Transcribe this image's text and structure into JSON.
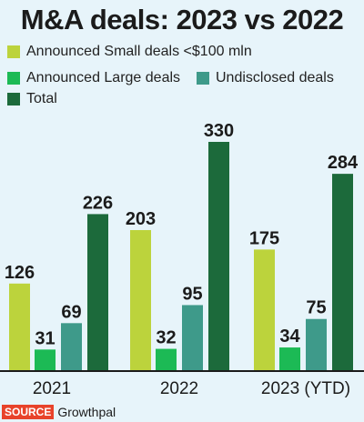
{
  "chart_data": {
    "type": "bar",
    "title": "M&A deals: 2023 vs 2022",
    "categories": [
      "2021",
      "2022",
      "2023 (YTD)"
    ],
    "series": [
      {
        "name": "Announced Small deals <$100 mln",
        "color": "#bcd33c",
        "values": [
          126,
          203,
          175
        ]
      },
      {
        "name": "Announced Large deals",
        "color": "#1cba55",
        "values": [
          31,
          32,
          34
        ]
      },
      {
        "name": "Undisclosed deals",
        "color": "#3e9a8a",
        "values": [
          69,
          95,
          75
        ]
      },
      {
        "name": "Total",
        "color": "#1c6a3b",
        "values": [
          226,
          330,
          284
        ]
      }
    ],
    "ylim": [
      0,
      330
    ],
    "grid": false,
    "legend": "top"
  },
  "source": {
    "label": "SOURCE",
    "name": "Growthpal"
  }
}
